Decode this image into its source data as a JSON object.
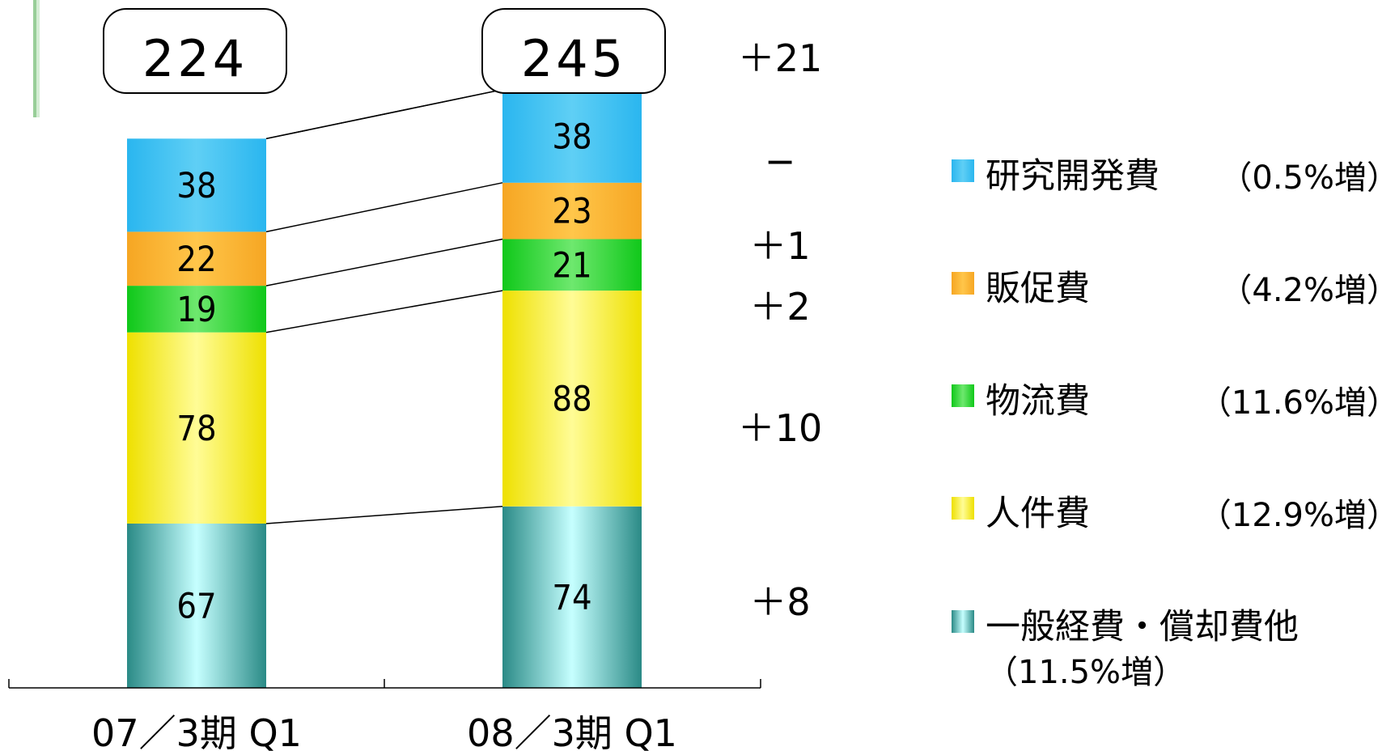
{
  "colors": {
    "rnd": [
      "#5fcff5",
      "#2ab6ef"
    ],
    "promo": [
      "#ffc64a",
      "#f6a623"
    ],
    "logistics": [
      "#6ee86e",
      "#10c81a"
    ],
    "personnel": [
      "#fffc96",
      "#eee000"
    ],
    "general": [
      "#c6ffff",
      "#2a8a86"
    ]
  },
  "chart_data": {
    "type": "bar",
    "stacked": true,
    "categories": [
      "07／3期 Q1",
      "08／3期 Q1"
    ],
    "series": [
      {
        "key": "general",
        "name": "一般経費・償却費他",
        "values": [
          67,
          74
        ]
      },
      {
        "key": "personnel",
        "name": "人件費",
        "values": [
          78,
          88
        ]
      },
      {
        "key": "logistics",
        "name": "物流費",
        "values": [
          19,
          21
        ]
      },
      {
        "key": "promo",
        "name": "販促費",
        "values": [
          22,
          23
        ]
      },
      {
        "key": "rnd",
        "name": "研究開発費",
        "values": [
          38,
          38
        ]
      }
    ],
    "totals": [
      "224",
      "245"
    ],
    "total_change": "＋21",
    "changes": [
      "＋8",
      "＋10",
      "＋2",
      "＋1",
      "−"
    ],
    "ylim": [
      0,
      245
    ]
  },
  "legend": [
    {
      "key": "rnd",
      "name": "研究開発費",
      "pct": "（0.5%増）"
    },
    {
      "key": "promo",
      "name": "販促費",
      "pct": "（4.2%増）"
    },
    {
      "key": "logistics",
      "name": "物流費",
      "pct": "（11.6%増）"
    },
    {
      "key": "personnel",
      "name": "人件費",
      "pct": "（12.9%増）"
    },
    {
      "key": "general",
      "name": "一般経費・償却費他",
      "pct": "（11.5%増）"
    }
  ]
}
